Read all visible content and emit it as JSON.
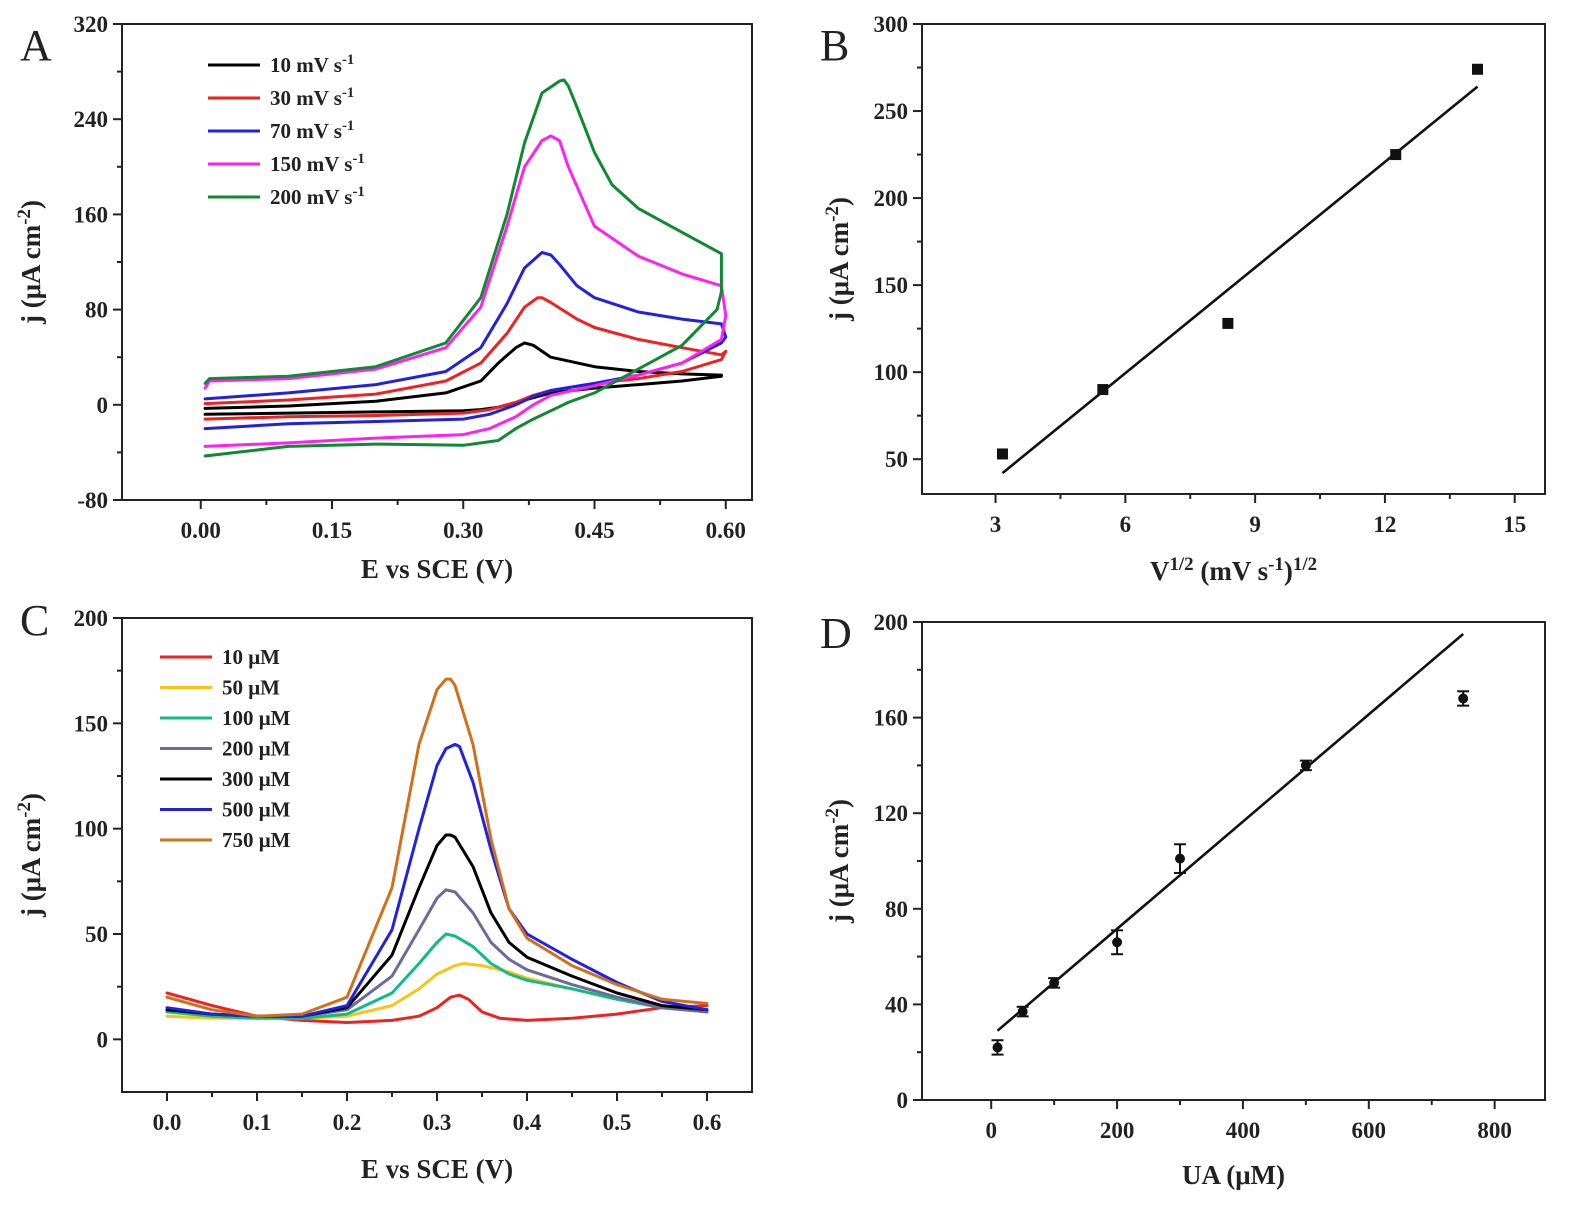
{
  "figure": {
    "title": ""
  },
  "chart_data": [
    {
      "id": "A",
      "panel_label": "A",
      "type": "line",
      "xlabel": "E vs SCE (V)",
      "ylabel_main": "j (μA cm",
      "ylabel_sup": "-2",
      "ylabel_tail": ")",
      "xlim": [
        -0.09,
        0.63
      ],
      "ylim": [
        -80,
        320
      ],
      "xticks": [
        0.0,
        0.15,
        0.3,
        0.45,
        0.6
      ],
      "xtick_labels": [
        "0.00",
        "0.15",
        "0.30",
        "0.45",
        "0.60"
      ],
      "yticks": [
        -80,
        0,
        80,
        160,
        240,
        320
      ],
      "ytick_labels": [
        "-80",
        "0",
        "80",
        "160",
        "240",
        "320"
      ],
      "legend_position": "top-left",
      "series": [
        {
          "name": "10 mV s",
          "name_sup": "-1",
          "color": "#000000",
          "x": [
            0.005,
            0.1,
            0.2,
            0.28,
            0.32,
            0.34,
            0.36,
            0.37,
            0.38,
            0.4,
            0.45,
            0.5,
            0.55,
            0.595,
            0.595,
            0.55,
            0.5,
            0.45,
            0.4,
            0.38,
            0.36,
            0.34,
            0.32,
            0.3,
            0.2,
            0.1,
            0.005
          ],
          "y": [
            -3,
            -1,
            3,
            10,
            20,
            35,
            48,
            52,
            50,
            40,
            32,
            28,
            26,
            25,
            24,
            20,
            17,
            14,
            10,
            6,
            2,
            -2,
            -4,
            -5,
            -6,
            -7,
            -8
          ]
        },
        {
          "name": "30 mV s",
          "name_sup": "-1",
          "color": "#ee2222",
          "x": [
            0.005,
            0.1,
            0.2,
            0.28,
            0.32,
            0.35,
            0.37,
            0.385,
            0.39,
            0.4,
            0.43,
            0.45,
            0.5,
            0.55,
            0.595,
            0.6,
            0.595,
            0.55,
            0.5,
            0.45,
            0.4,
            0.38,
            0.36,
            0.33,
            0.3,
            0.2,
            0.1,
            0.005
          ],
          "y": [
            1,
            4,
            9,
            20,
            35,
            60,
            82,
            90,
            90,
            86,
            72,
            65,
            55,
            48,
            42,
            45,
            38,
            28,
            22,
            18,
            12,
            8,
            2,
            -4,
            -7,
            -9,
            -10,
            -12
          ]
        },
        {
          "name": "70 mV s",
          "name_sup": "-1",
          "color": "#2222dd",
          "x": [
            0.005,
            0.1,
            0.2,
            0.28,
            0.32,
            0.35,
            0.37,
            0.39,
            0.4,
            0.41,
            0.43,
            0.45,
            0.5,
            0.55,
            0.595,
            0.6,
            0.595,
            0.55,
            0.5,
            0.45,
            0.4,
            0.38,
            0.36,
            0.33,
            0.3,
            0.2,
            0.1,
            0.005
          ],
          "y": [
            5,
            10,
            17,
            28,
            48,
            85,
            115,
            128,
            126,
            118,
            100,
            90,
            78,
            72,
            68,
            57,
            52,
            35,
            25,
            18,
            12,
            7,
            0,
            -8,
            -12,
            -14,
            -16,
            -20
          ]
        },
        {
          "name": "150 mV s",
          "name_sup": "-1",
          "color": "#ff22ee",
          "x": [
            0.005,
            0.01,
            0.1,
            0.2,
            0.28,
            0.32,
            0.35,
            0.37,
            0.39,
            0.4,
            0.41,
            0.42,
            0.45,
            0.5,
            0.55,
            0.595,
            0.6,
            0.595,
            0.55,
            0.5,
            0.45,
            0.4,
            0.38,
            0.36,
            0.33,
            0.3,
            0.2,
            0.1,
            0.005
          ],
          "y": [
            14,
            20,
            22,
            30,
            48,
            82,
            150,
            200,
            222,
            226,
            222,
            200,
            150,
            125,
            110,
            100,
            75,
            55,
            35,
            25,
            16,
            8,
            0,
            -10,
            -20,
            -25,
            -28,
            -32,
            -35
          ]
        },
        {
          "name": "200 mV s",
          "name_sup": "-1",
          "color": "#118833",
          "x": [
            0.005,
            0.01,
            0.1,
            0.2,
            0.28,
            0.32,
            0.35,
            0.37,
            0.39,
            0.41,
            0.415,
            0.42,
            0.43,
            0.45,
            0.47,
            0.5,
            0.55,
            0.595,
            0.595,
            0.59,
            0.55,
            0.5,
            0.45,
            0.42,
            0.4,
            0.38,
            0.36,
            0.34,
            0.3,
            0.2,
            0.1,
            0.005
          ],
          "y": [
            18,
            22,
            24,
            32,
            52,
            90,
            160,
            220,
            262,
            272,
            273,
            268,
            250,
            212,
            185,
            165,
            145,
            127,
            95,
            80,
            50,
            30,
            10,
            2,
            -5,
            -12,
            -20,
            -30,
            -34,
            -33,
            -35,
            -43
          ]
        }
      ]
    },
    {
      "id": "B",
      "panel_label": "B",
      "type": "scatter",
      "xlabel_main": "V",
      "xlabel_sup1": "1/2",
      "xlabel_mid": " (mV s",
      "xlabel_sup2": "-1",
      "xlabel_close": ")",
      "xlabel_sup3": "1/2",
      "ylabel_main": "j (μA cm",
      "ylabel_sup": "-2",
      "ylabel_tail": ")",
      "xlim": [
        1.3,
        15.7
      ],
      "ylim": [
        30,
        300
      ],
      "xticks": [
        3,
        6,
        9,
        12,
        15
      ],
      "xtick_labels": [
        "3",
        "6",
        "9",
        "12",
        "15"
      ],
      "yticks": [
        50,
        100,
        150,
        200,
        250,
        300
      ],
      "ytick_labels": [
        "50",
        "100",
        "150",
        "200",
        "250",
        "300"
      ],
      "points": {
        "x": [
          3.16,
          5.48,
          8.37,
          12.25,
          14.14
        ],
        "y": [
          53,
          90,
          128,
          225,
          274
        ]
      },
      "fit_line": {
        "x": [
          3.16,
          14.14
        ],
        "y": [
          42,
          264
        ]
      }
    },
    {
      "id": "C",
      "panel_label": "C",
      "type": "line",
      "xlabel": "E vs SCE (V)",
      "ylabel_main": "j (μA cm",
      "ylabel_sup": "-2",
      "ylabel_tail": ")",
      "xlim": [
        -0.05,
        0.65
      ],
      "ylim": [
        -25,
        200
      ],
      "xticks": [
        0.0,
        0.1,
        0.2,
        0.3,
        0.4,
        0.5,
        0.6
      ],
      "xtick_labels": [
        "0.0",
        "0.1",
        "0.2",
        "0.3",
        "0.4",
        "0.5",
        "0.6"
      ],
      "yticks": [
        0,
        50,
        100,
        150,
        200
      ],
      "ytick_labels": [
        "0",
        "50",
        "100",
        "150",
        "200"
      ],
      "legend_position": "top-left",
      "series": [
        {
          "name": "10 μM",
          "color": "#ee2222",
          "x": [
            0.0,
            0.05,
            0.1,
            0.15,
            0.2,
            0.25,
            0.28,
            0.3,
            0.315,
            0.325,
            0.335,
            0.35,
            0.37,
            0.4,
            0.45,
            0.5,
            0.55,
            0.6
          ],
          "y": [
            22,
            16,
            11,
            9,
            8,
            9,
            11,
            15,
            20,
            21,
            19,
            13,
            10,
            9,
            10,
            12,
            15,
            16
          ]
        },
        {
          "name": "50 μM",
          "color": "#f5c518",
          "x": [
            0.0,
            0.05,
            0.1,
            0.15,
            0.2,
            0.25,
            0.28,
            0.3,
            0.32,
            0.33,
            0.35,
            0.38,
            0.4,
            0.45,
            0.5,
            0.55,
            0.6
          ],
          "y": [
            11,
            10,
            10,
            10,
            11,
            16,
            24,
            31,
            35,
            36,
            35,
            32,
            29,
            24,
            19,
            15,
            14
          ]
        },
        {
          "name": "100 μM",
          "color": "#11bb88",
          "x": [
            0.0,
            0.05,
            0.1,
            0.15,
            0.2,
            0.25,
            0.28,
            0.3,
            0.31,
            0.32,
            0.34,
            0.36,
            0.38,
            0.4,
            0.45,
            0.5,
            0.55,
            0.6
          ],
          "y": [
            13,
            11,
            10,
            10,
            12,
            22,
            36,
            46,
            50,
            49,
            44,
            36,
            31,
            28,
            24,
            19,
            15,
            13
          ]
        },
        {
          "name": "200 μM",
          "color": "#6b6b9b",
          "x": [
            0.0,
            0.05,
            0.1,
            0.15,
            0.2,
            0.25,
            0.28,
            0.3,
            0.31,
            0.32,
            0.34,
            0.36,
            0.38,
            0.4,
            0.45,
            0.5,
            0.55,
            0.6
          ],
          "y": [
            14,
            12,
            11,
            11,
            14,
            30,
            52,
            67,
            71,
            70,
            60,
            46,
            38,
            33,
            26,
            20,
            15,
            13
          ]
        },
        {
          "name": "300 μM",
          "color": "#000000",
          "x": [
            0.0,
            0.05,
            0.1,
            0.15,
            0.2,
            0.25,
            0.28,
            0.3,
            0.31,
            0.315,
            0.32,
            0.34,
            0.36,
            0.38,
            0.4,
            0.45,
            0.5,
            0.55,
            0.6
          ],
          "y": [
            14,
            12,
            11,
            11,
            15,
            40,
            72,
            92,
            97,
            97,
            96,
            82,
            60,
            46,
            39,
            30,
            22,
            16,
            14
          ]
        },
        {
          "name": "500 μM",
          "color": "#2222dd",
          "x": [
            0.0,
            0.05,
            0.1,
            0.15,
            0.2,
            0.25,
            0.28,
            0.3,
            0.31,
            0.32,
            0.325,
            0.34,
            0.36,
            0.38,
            0.4,
            0.45,
            0.5,
            0.55,
            0.6
          ],
          "y": [
            15,
            12,
            11,
            11,
            16,
            52,
            100,
            130,
            138,
            140,
            139,
            122,
            90,
            62,
            50,
            38,
            27,
            18,
            14
          ]
        },
        {
          "name": "750 μM",
          "color": "#d0701a",
          "x": [
            0.0,
            0.05,
            0.1,
            0.15,
            0.2,
            0.25,
            0.28,
            0.3,
            0.31,
            0.315,
            0.32,
            0.34,
            0.36,
            0.38,
            0.4,
            0.45,
            0.5,
            0.55,
            0.6
          ],
          "y": [
            20,
            14,
            11,
            12,
            20,
            72,
            140,
            166,
            171,
            171,
            168,
            140,
            95,
            62,
            48,
            35,
            26,
            19,
            17
          ]
        }
      ]
    },
    {
      "id": "D",
      "panel_label": "D",
      "type": "scatter",
      "xlabel": "UA (μM)",
      "ylabel_main": "j (μA cm",
      "ylabel_sup": "-2",
      "ylabel_tail": ")",
      "xlim": [
        -110,
        880
      ],
      "ylim": [
        0,
        200
      ],
      "xticks": [
        0,
        200,
        400,
        600,
        800
      ],
      "xtick_labels": [
        "0",
        "200",
        "400",
        "600",
        "800"
      ],
      "yticks": [
        0,
        40,
        80,
        120,
        160,
        200
      ],
      "ytick_labels": [
        "0",
        "40",
        "80",
        "120",
        "160",
        "200"
      ],
      "points": {
        "x": [
          10,
          50,
          100,
          200,
          300,
          500,
          750
        ],
        "y": [
          22,
          37,
          49,
          66,
          101,
          140,
          168
        ],
        "err": [
          3,
          2,
          2,
          5,
          6,
          2,
          3
        ]
      },
      "fit_line": {
        "x": [
          10,
          750
        ],
        "y": [
          29,
          195
        ]
      }
    }
  ]
}
